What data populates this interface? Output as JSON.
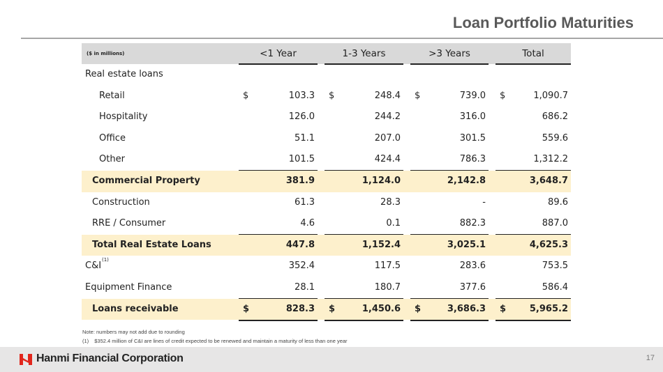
{
  "header": {
    "title": "Loan Portfolio Maturities"
  },
  "table": {
    "unit_note": "($ in millions)",
    "columns": [
      "<1 Year",
      "1-3 Years",
      ">3 Years",
      "Total"
    ],
    "rows": [
      {
        "label": "Real estate loans"
      },
      {
        "label": "Retail",
        "currency": "$",
        "values": [
          "103.3",
          "248.4",
          "739.0",
          "1,090.7"
        ]
      },
      {
        "label": "Hospitality",
        "values": [
          "126.0",
          "244.2",
          "316.0",
          "686.2"
        ]
      },
      {
        "label": "Office",
        "values": [
          "51.1",
          "207.0",
          "301.5",
          "559.6"
        ]
      },
      {
        "label": "Other",
        "values": [
          "101.5",
          "424.4",
          "786.3",
          "1,312.2"
        ]
      },
      {
        "label": "Commercial Property",
        "values": [
          "381.9",
          "1,124.0",
          "2,142.8",
          "3,648.7"
        ]
      },
      {
        "label": "Construction",
        "values": [
          "61.3",
          "28.3",
          "-",
          "89.6"
        ]
      },
      {
        "label": "RRE / Consumer",
        "values": [
          "4.6",
          "0.1",
          "882.3",
          "887.0"
        ]
      },
      {
        "label": "Total Real Estate Loans",
        "values": [
          "447.8",
          "1,152.4",
          "3,025.1",
          "4,625.3"
        ]
      },
      {
        "label": "C&I",
        "footnote": "(1)",
        "values": [
          "352.4",
          "117.5",
          "283.6",
          "753.5"
        ]
      },
      {
        "label": "Equipment Finance",
        "values": [
          "28.1",
          "180.7",
          "377.6",
          "586.4"
        ]
      },
      {
        "label": "Loans receivable",
        "currency": "$",
        "values": [
          "828.3",
          "1,450.6",
          "3,686.3",
          "5,965.2"
        ]
      }
    ]
  },
  "notes": [
    "Note: numbers may not add due to rounding",
    {
      "marker": "(1)",
      "text": "$352.4 million of C&I are lines of credit expected to be renewed and maintain a maturity of less than one year"
    }
  ],
  "footer": {
    "company": "Hanmi Financial Corporation",
    "page": "17"
  }
}
